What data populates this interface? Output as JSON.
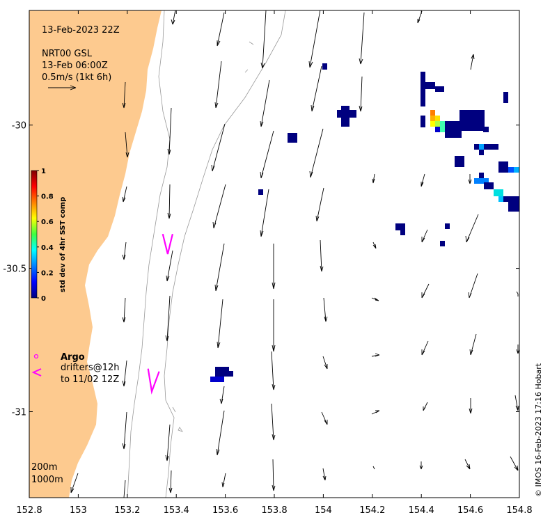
{
  "header": {
    "valid_time": "13-Feb-2023 22Z",
    "product": "NRT00 GSL",
    "analysis_time": "13-Feb 06:00Z",
    "scale_label": "0.5m/s (1kt 6h)"
  },
  "axes": {
    "x_ticks": [
      "152.8",
      "153",
      "153.2",
      "153.4",
      "153.6",
      "153.8",
      "154",
      "154.2",
      "154.4",
      "154.6",
      "154.8"
    ],
    "x_values": [
      152.8,
      153.0,
      153.2,
      153.4,
      153.6,
      153.8,
      154.0,
      154.2,
      154.4,
      154.6,
      154.8
    ],
    "y_ticks": [
      "-30",
      "-30.5",
      "-31"
    ],
    "y_values": [
      -30.0,
      -30.5,
      -31.0
    ],
    "xlim": [
      152.8,
      154.8
    ],
    "ylim": [
      -31.3,
      -29.6
    ]
  },
  "colorbar": {
    "title": "std dev of 4hr SST comp",
    "ticks": [
      "0",
      "0.2",
      "0.4",
      "0.6",
      "0.8",
      "1"
    ],
    "range": [
      0,
      1
    ]
  },
  "legend": {
    "argo_label": "Argo",
    "drifters_label": "drifters@12h",
    "drifters_period": "to 11/02 12Z"
  },
  "isobaths": {
    "shallow_label": "200m",
    "deep_label": "1000m"
  },
  "credit": "© IMOS 16-Feb-2023 17:16 Hobart",
  "colors": {
    "land": "#fdca8f",
    "argo_drifter": "#ff00ff",
    "isobath": "#999999"
  },
  "drifter_tracks": [
    [
      [
        153.345,
        -30.38
      ],
      [
        153.365,
        -30.45
      ],
      [
        153.385,
        -30.38
      ]
    ],
    [
      [
        153.285,
        -30.85
      ],
      [
        153.3,
        -30.93
      ],
      [
        153.33,
        -30.86
      ]
    ]
  ]
}
